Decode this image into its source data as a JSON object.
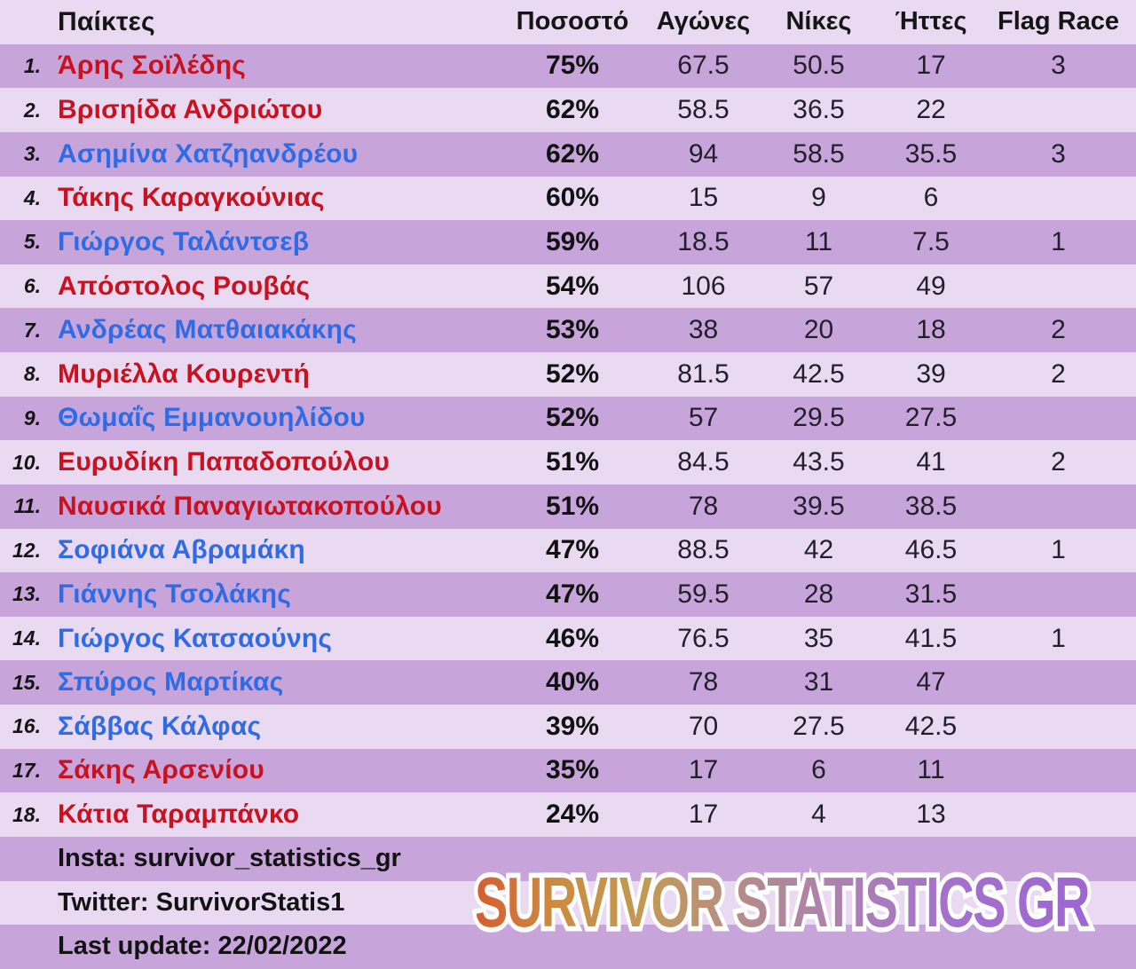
{
  "header": {
    "players": "Παίκτες",
    "pct": "Ποσοστό",
    "games": "Αγώνες",
    "wins": "Νίκες",
    "losses": "Ήττες",
    "flag_race": "Flag Race"
  },
  "rows": [
    {
      "rank": "1.",
      "name": "Άρης Σοϊλέδης",
      "color": "red",
      "pct": "75%",
      "games": "67.5",
      "wins": "50.5",
      "losses": "17",
      "flag": "3"
    },
    {
      "rank": "2.",
      "name": "Βρισηίδα Ανδριώτου",
      "color": "red",
      "pct": "62%",
      "games": "58.5",
      "wins": "36.5",
      "losses": "22",
      "flag": ""
    },
    {
      "rank": "3.",
      "name": "Ασημίνα Χατζηανδρέου",
      "color": "blue",
      "pct": "62%",
      "games": "94",
      "wins": "58.5",
      "losses": "35.5",
      "flag": "3"
    },
    {
      "rank": "4.",
      "name": "Τάκης Καραγκούνιας",
      "color": "red",
      "pct": "60%",
      "games": "15",
      "wins": "9",
      "losses": "6",
      "flag": ""
    },
    {
      "rank": "5.",
      "name": "Γιώργος Ταλάντσεβ",
      "color": "blue",
      "pct": "59%",
      "games": "18.5",
      "wins": "11",
      "losses": "7.5",
      "flag": "1"
    },
    {
      "rank": "6.",
      "name": "Απόστολος Ρουβάς",
      "color": "red",
      "pct": "54%",
      "games": "106",
      "wins": "57",
      "losses": "49",
      "flag": ""
    },
    {
      "rank": "7.",
      "name": "Ανδρέας Ματθαιακάκης",
      "color": "blue",
      "pct": "53%",
      "games": "38",
      "wins": "20",
      "losses": "18",
      "flag": "2"
    },
    {
      "rank": "8.",
      "name": "Μυριέλλα Κουρεντή",
      "color": "red",
      "pct": "52%",
      "games": "81.5",
      "wins": "42.5",
      "losses": "39",
      "flag": "2"
    },
    {
      "rank": "9.",
      "name": "Θωμαΐς Εμμανουηλίδου",
      "color": "blue",
      "pct": "52%",
      "games": "57",
      "wins": "29.5",
      "losses": "27.5",
      "flag": ""
    },
    {
      "rank": "10.",
      "name": "Ευρυδίκη Παπαδοπούλου",
      "color": "red",
      "pct": "51%",
      "games": "84.5",
      "wins": "43.5",
      "losses": "41",
      "flag": "2"
    },
    {
      "rank": "11.",
      "name": "Ναυσικά Παναγιωτακοπούλου",
      "color": "red",
      "pct": "51%",
      "games": "78",
      "wins": "39.5",
      "losses": "38.5",
      "flag": ""
    },
    {
      "rank": "12.",
      "name": "Σοφιάνα Αβραμάκη",
      "color": "blue",
      "pct": "47%",
      "games": "88.5",
      "wins": "42",
      "losses": "46.5",
      "flag": "1"
    },
    {
      "rank": "13.",
      "name": "Γιάννης Τσολάκης",
      "color": "blue",
      "pct": "47%",
      "games": "59.5",
      "wins": "28",
      "losses": "31.5",
      "flag": ""
    },
    {
      "rank": "14.",
      "name": "Γιώργος Κατσαούνης",
      "color": "blue",
      "pct": "46%",
      "games": "76.5",
      "wins": "35",
      "losses": "41.5",
      "flag": "1"
    },
    {
      "rank": "15.",
      "name": "Σπύρος Μαρτίκας",
      "color": "blue",
      "pct": "40%",
      "games": "78",
      "wins": "31",
      "losses": "47",
      "flag": ""
    },
    {
      "rank": "16.",
      "name": "Σάββας Κάλφας",
      "color": "blue",
      "pct": "39%",
      "games": "70",
      "wins": "27.5",
      "losses": "42.5",
      "flag": ""
    },
    {
      "rank": "17.",
      "name": "Σάκης Αρσενίου",
      "color": "red",
      "pct": "35%",
      "games": "17",
      "wins": "6",
      "losses": "11",
      "flag": ""
    },
    {
      "rank": "18.",
      "name": "Κάτια Ταραμπάνκο",
      "color": "red",
      "pct": "24%",
      "games": "17",
      "wins": "4",
      "losses": "13",
      "flag": ""
    }
  ],
  "footer": {
    "insta": "Insta: survivor_statistics_gr",
    "twitter": "Twitter: SurvivorStatis1",
    "last_update": "Last update: 22/02/2022",
    "watermark": "SURVIVOR STATISTICS GR"
  },
  "colors": {
    "row_light": "#e9daf2",
    "row_dark": "#c7a5db",
    "name_red": "#c9111f",
    "name_blue": "#2e6be4",
    "stat_text": "#221f2a",
    "watermark_gradient": [
      "#d84a2c",
      "#c29a55",
      "#ad7fb4",
      "#9c63d2"
    ]
  },
  "chart_data": {
    "type": "table",
    "title": "Survivor Statistics GR - Player win percentages",
    "columns": [
      "Παίκτες",
      "Ποσοστό",
      "Αγώνες",
      "Νίκες",
      "Ήττες",
      "Flag Race"
    ],
    "rows": [
      [
        "Άρης Σοϊλέδης",
        "75%",
        67.5,
        50.5,
        17,
        3
      ],
      [
        "Βρισηίδα Ανδριώτου",
        "62%",
        58.5,
        36.5,
        22,
        null
      ],
      [
        "Ασημίνα Χατζηανδρέου",
        "62%",
        94,
        58.5,
        35.5,
        3
      ],
      [
        "Τάκης Καραγκούνιας",
        "60%",
        15,
        9,
        6,
        null
      ],
      [
        "Γιώργος Ταλάντσεβ",
        "59%",
        18.5,
        11,
        7.5,
        1
      ],
      [
        "Απόστολος Ρουβάς",
        "54%",
        106,
        57,
        49,
        null
      ],
      [
        "Ανδρέας Ματθαιακάκης",
        "53%",
        38,
        20,
        18,
        2
      ],
      [
        "Μυριέλλα Κουρεντή",
        "52%",
        81.5,
        42.5,
        39,
        2
      ],
      [
        "Θωμαΐς Εμμανουηλίδου",
        "52%",
        57,
        29.5,
        27.5,
        null
      ],
      [
        "Ευρυδίκη Παπαδοπούλου",
        "51%",
        84.5,
        43.5,
        41,
        2
      ],
      [
        "Ναυσικά Παναγιωτακοπούλου",
        "51%",
        78,
        39.5,
        38.5,
        null
      ],
      [
        "Σοφιάνα Αβραμάκη",
        "47%",
        88.5,
        42,
        46.5,
        1
      ],
      [
        "Γιάννης Τσολάκης",
        "47%",
        59.5,
        28,
        31.5,
        null
      ],
      [
        "Γιώργος Κατσαούνης",
        "46%",
        76.5,
        35,
        41.5,
        1
      ],
      [
        "Σπύρος Μαρτίκας",
        "40%",
        78,
        31,
        47,
        null
      ],
      [
        "Σάββας Κάλφας",
        "39%",
        70,
        27.5,
        42.5,
        null
      ],
      [
        "Σάκης Αρσενίου",
        "35%",
        17,
        6,
        11,
        null
      ],
      [
        "Κάτια Ταραμπάνκο",
        "24%",
        17,
        4,
        13,
        null
      ]
    ]
  }
}
